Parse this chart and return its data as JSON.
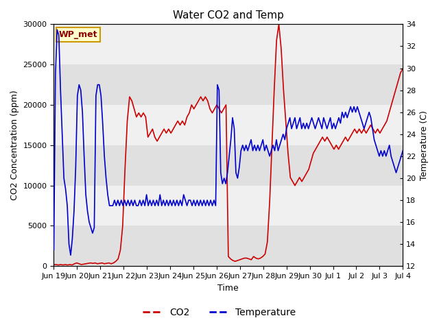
{
  "title": "Water CO2 and Temp",
  "xlabel": "Time",
  "ylabel_left": "CO2 Concentration (ppm)",
  "ylabel_right": "Temperature (C)",
  "annotation": "WP_met",
  "annotation_bg": "#ffffcc",
  "annotation_border": "#cc9900",
  "annotation_text_color": "#8b0000",
  "ylim_left": [
    0,
    30000
  ],
  "ylim_right": [
    12,
    34
  ],
  "yticks_left": [
    0,
    5000,
    10000,
    15000,
    20000,
    25000,
    30000
  ],
  "yticks_right": [
    12,
    14,
    16,
    18,
    20,
    22,
    24,
    26,
    28,
    30,
    32,
    34
  ],
  "xtick_labels": [
    "Jun 19",
    "Jun 20",
    "Jun 21",
    "Jun 22",
    "Jun 23",
    "Jun 24",
    "Jun 25",
    "Jun 26",
    "Jun 27",
    "Jun 28",
    "Jun 29",
    "Jun 30",
    "Jul 1",
    "Jul 2",
    "Jul 3",
    "Jul 4"
  ],
  "co2_color": "#cc0000",
  "temp_color": "#0000cc",
  "plot_bg_light": "#f0f0f0",
  "plot_bg_dark": "#e0e0e0",
  "legend_co2": "CO2",
  "legend_temp": "Temperature",
  "co2_data": [
    200,
    200,
    150,
    200,
    150,
    200,
    150,
    200,
    150,
    300,
    400,
    300,
    200,
    250,
    300,
    350,
    400,
    350,
    400,
    300,
    350,
    400,
    300,
    350,
    400,
    300,
    400,
    600,
    900,
    2000,
    5000,
    12000,
    18000,
    21000,
    20500,
    19500,
    18500,
    19000,
    18500,
    19000,
    18500,
    16000,
    16500,
    17000,
    16000,
    15500,
    16000,
    16500,
    17000,
    16500,
    17000,
    16500,
    17000,
    17500,
    18000,
    17500,
    18000,
    17500,
    18500,
    19000,
    20000,
    19500,
    20000,
    20500,
    21000,
    20500,
    21000,
    20500,
    19500,
    19000,
    19500,
    20000,
    19500,
    19000,
    19500,
    20000,
    1200,
    900,
    700,
    600,
    700,
    800,
    900,
    1000,
    1000,
    900,
    800,
    1200,
    1000,
    900,
    1000,
    1200,
    1500,
    3000,
    8000,
    15000,
    22000,
    28000,
    30000,
    27000,
    22000,
    18000,
    14000,
    11000,
    10500,
    10000,
    10500,
    11000,
    10500,
    11000,
    11500,
    12000,
    13000,
    14000,
    14500,
    15000,
    15500,
    16000,
    15500,
    16000,
    15500,
    15000,
    14500,
    15000,
    14500,
    15000,
    15500,
    16000,
    15500,
    16000,
    16500,
    17000,
    16500,
    17000,
    16500,
    17000,
    16500,
    17000,
    17500,
    17000,
    16500,
    17000,
    16500,
    17000,
    17500,
    18000,
    19000,
    20000,
    21000,
    22000,
    23000,
    24000,
    24500
  ],
  "temp_data": [
    13.5,
    29.5,
    33.5,
    33.0,
    28.0,
    24.0,
    20.0,
    19.0,
    17.5,
    14.0,
    13.0,
    14.5,
    17.0,
    21.0,
    27.5,
    28.5,
    28.0,
    26.0,
    22.0,
    18.5,
    17.0,
    16.0,
    15.5,
    15.0,
    15.5,
    27.5,
    28.5,
    28.5,
    27.5,
    25.0,
    22.0,
    20.0,
    18.5,
    17.5,
    17.5,
    17.5,
    18.0,
    17.5,
    18.0,
    17.5,
    18.0,
    17.5,
    18.0,
    17.5,
    18.0,
    17.5,
    18.0,
    17.5,
    18.0,
    17.5,
    17.5,
    18.0,
    17.5,
    18.0,
    17.5,
    18.5,
    17.5,
    18.0,
    17.5,
    18.0,
    17.5,
    18.0,
    17.5,
    18.5,
    17.5,
    18.0,
    17.5,
    18.0,
    17.5,
    18.0,
    17.5,
    18.0,
    17.5,
    18.0,
    17.5,
    18.0,
    17.5,
    18.5,
    18.0,
    17.5,
    18.0,
    18.0,
    17.5,
    18.0,
    17.5,
    18.0,
    17.5,
    18.0,
    17.5,
    18.0,
    17.5,
    18.0,
    17.5,
    18.0,
    17.5,
    18.0,
    17.5,
    28.5,
    28.0,
    20.5,
    19.5,
    20.0,
    19.5,
    20.5,
    22.0,
    23.5,
    25.5,
    24.5,
    20.5,
    20.0,
    21.0,
    22.5,
    23.0,
    22.5,
    23.0,
    22.5,
    23.0,
    23.5,
    22.5,
    23.0,
    22.5,
    23.0,
    22.5,
    23.0,
    23.5,
    22.5,
    23.0,
    22.5,
    22.0,
    22.5,
    23.0,
    22.5,
    23.5,
    22.5,
    23.0,
    23.5,
    24.0,
    23.5,
    24.5,
    25.0,
    25.5,
    24.5,
    25.0,
    25.5,
    24.5,
    25.0,
    25.5,
    24.5,
    25.0,
    24.5,
    25.0,
    24.5,
    25.0,
    25.5,
    25.0,
    24.5,
    25.0,
    25.5,
    25.0,
    24.5,
    25.5,
    25.0,
    24.5,
    25.0,
    25.5,
    24.5,
    25.0,
    24.5,
    25.0,
    25.5,
    25.0,
    26.0,
    25.5,
    26.0,
    25.5,
    26.0,
    26.5,
    26.0,
    26.5,
    26.0,
    26.5,
    26.0,
    25.5,
    25.0,
    24.5,
    25.0,
    25.5,
    26.0,
    25.5,
    24.5,
    23.5,
    23.0,
    22.5,
    22.0,
    22.5,
    22.0,
    22.5,
    22.0,
    22.5,
    23.0,
    22.0,
    21.5,
    21.0,
    20.5,
    21.0,
    21.5,
    22.0,
    22.5
  ]
}
